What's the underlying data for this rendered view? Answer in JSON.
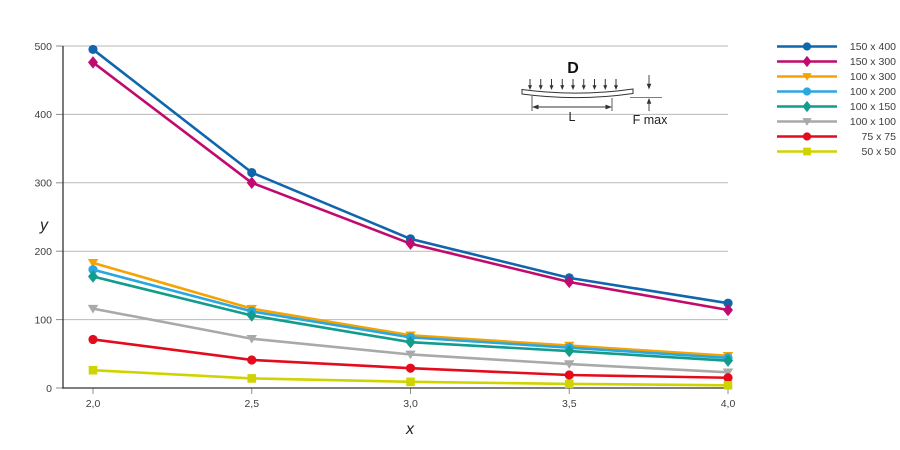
{
  "chart_data": {
    "type": "line",
    "x": [
      2.0,
      2.5,
      3.0,
      3.5,
      4.0
    ],
    "x_tick_labels": [
      "2,0",
      "2,5",
      "3,0",
      "3,5",
      "4,0"
    ],
    "y_ticks": [
      0,
      100,
      200,
      300,
      400,
      500
    ],
    "ylim": [
      0,
      500
    ],
    "xlabel": "x",
    "ylabel": "y",
    "grid": "horizontal",
    "legend_position": "right",
    "series": [
      {
        "name": "150 x 400",
        "color": "#1066ad",
        "marker": "circle",
        "values": [
          495,
          315,
          218,
          161,
          124
        ]
      },
      {
        "name": "150 x 300",
        "color": "#c00a6e",
        "marker": "diamond",
        "values": [
          476,
          300,
          211,
          155,
          114
        ]
      },
      {
        "name": "100 x 300",
        "color": "#f6a200",
        "marker": "triangle-down",
        "values": [
          183,
          116,
          77,
          62,
          47
        ]
      },
      {
        "name": "100 x 200",
        "color": "#2aa7e0",
        "marker": "circle",
        "values": [
          173,
          112,
          74,
          59,
          44
        ]
      },
      {
        "name": "100 x 150",
        "color": "#129c8d",
        "marker": "diamond",
        "values": [
          163,
          106,
          67,
          54,
          40
        ]
      },
      {
        "name": "100 x 100",
        "color": "#a9a9a9",
        "marker": "triangle-down",
        "values": [
          116,
          72,
          49,
          35,
          23
        ]
      },
      {
        "name": "75 x 75",
        "color": "#e30b1c",
        "marker": "circle",
        "values": [
          71,
          41,
          29,
          19,
          15
        ]
      },
      {
        "name": "50 x 50",
        "color": "#cfd400",
        "marker": "square",
        "values": [
          26,
          14,
          9,
          6,
          4
        ]
      }
    ],
    "annotation": {
      "title": "D",
      "dim_label": "L",
      "value_label": "F max"
    }
  }
}
